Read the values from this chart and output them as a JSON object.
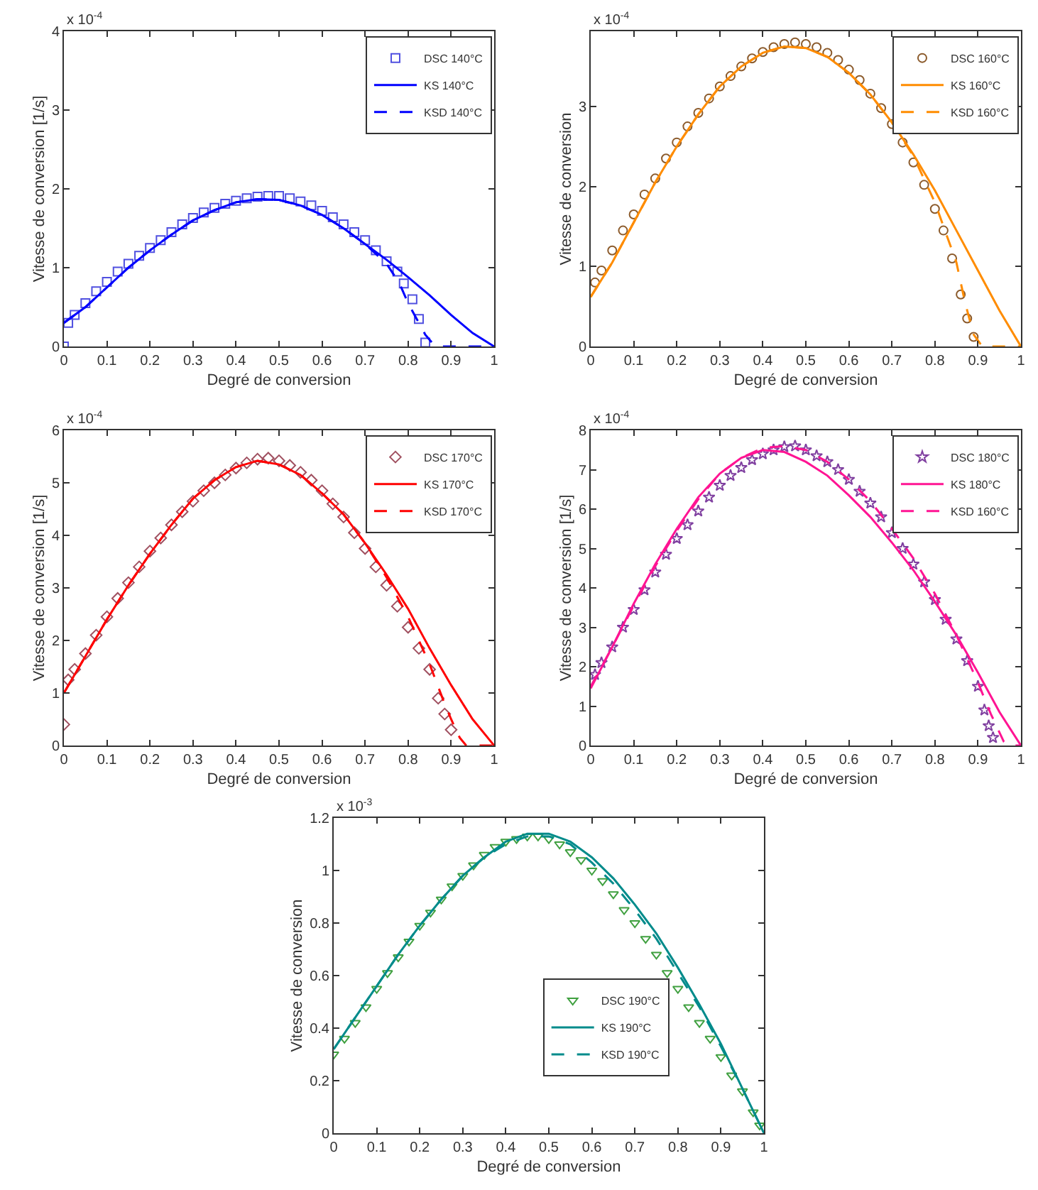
{
  "chart_data": [
    {
      "type": "line",
      "xlabel": "Degré de conversion",
      "ylabel": "Vitesse de conversion [1/s]",
      "annotations": [
        "x 10$^{-4}$"
      ],
      "xlim": [
        0,
        1
      ],
      "xticks": [
        0,
        0.1,
        0.2,
        0.3,
        0.4,
        0.5,
        0.6,
        0.7,
        0.8,
        0.9,
        1
      ],
      "ylim": [
        0,
        4
      ],
      "yticks": [
        0,
        1,
        2,
        3,
        4
      ],
      "legend": "top right",
      "series": [
        {
          "name": "DSC 140°C",
          "type": "scatter",
          "marker": "square",
          "color": "#5050e0",
          "x": [
            0,
            0.01,
            0.025,
            0.05,
            0.075,
            0.1,
            0.125,
            0.15,
            0.175,
            0.2,
            0.225,
            0.25,
            0.275,
            0.3,
            0.325,
            0.35,
            0.375,
            0.4,
            0.425,
            0.45,
            0.475,
            0.5,
            0.525,
            0.55,
            0.575,
            0.6,
            0.625,
            0.65,
            0.675,
            0.7,
            0.725,
            0.75,
            0.775,
            0.79,
            0.81,
            0.825,
            0.84
          ],
          "values": [
            0,
            0.3,
            0.4,
            0.55,
            0.7,
            0.82,
            0.95,
            1.05,
            1.15,
            1.25,
            1.35,
            1.45,
            1.55,
            1.63,
            1.7,
            1.76,
            1.81,
            1.85,
            1.88,
            1.9,
            1.91,
            1.91,
            1.88,
            1.84,
            1.79,
            1.72,
            1.64,
            1.55,
            1.45,
            1.35,
            1.22,
            1.08,
            0.95,
            0.8,
            0.6,
            0.35,
            0.05
          ]
        },
        {
          "name": "KS 140°C",
          "type": "line",
          "line_style": "solid",
          "color": "#0000ff",
          "x": [
            0,
            0.05,
            0.1,
            0.15,
            0.2,
            0.25,
            0.3,
            0.35,
            0.4,
            0.45,
            0.5,
            0.55,
            0.6,
            0.65,
            0.7,
            0.75,
            0.8,
            0.85,
            0.9,
            0.95,
            1
          ],
          "values": [
            0.3,
            0.5,
            0.75,
            1.0,
            1.22,
            1.42,
            1.6,
            1.73,
            1.83,
            1.87,
            1.86,
            1.79,
            1.67,
            1.5,
            1.3,
            1.1,
            0.88,
            0.65,
            0.4,
            0.17,
            0
          ]
        },
        {
          "name": "KSD 140°C",
          "type": "line",
          "line_style": "dashed",
          "color": "#0000ff",
          "x": [
            0,
            0.05,
            0.1,
            0.15,
            0.2,
            0.25,
            0.3,
            0.35,
            0.4,
            0.45,
            0.5,
            0.55,
            0.6,
            0.65,
            0.7,
            0.75,
            0.78,
            0.8,
            0.82,
            0.84,
            0.86,
            0.87,
            1
          ],
          "values": [
            0.3,
            0.5,
            0.75,
            1.0,
            1.22,
            1.42,
            1.6,
            1.73,
            1.83,
            1.87,
            1.86,
            1.79,
            1.67,
            1.5,
            1.3,
            1.05,
            0.8,
            0.55,
            0.35,
            0.15,
            0.02,
            0,
            0
          ]
        }
      ]
    },
    {
      "type": "line",
      "xlabel": "Degré de conversion",
      "ylabel": "Vitesse de conversion",
      "annotations": [
        "x 10$^{-4}$"
      ],
      "xlim": [
        0,
        1
      ],
      "xticks": [
        0,
        0.1,
        0.2,
        0.3,
        0.4,
        0.5,
        0.6,
        0.7,
        0.8,
        0.9,
        1
      ],
      "ylim": [
        0,
        3.94
      ],
      "yticks": [
        0,
        1,
        2,
        3
      ],
      "legend": "top right",
      "series": [
        {
          "name": "DSC 160°C",
          "type": "scatter",
          "marker": "circle",
          "color": "#8b5a2b",
          "x": [
            0.01,
            0.025,
            0.05,
            0.075,
            0.1,
            0.125,
            0.15,
            0.175,
            0.2,
            0.225,
            0.25,
            0.275,
            0.3,
            0.325,
            0.35,
            0.375,
            0.4,
            0.425,
            0.45,
            0.475,
            0.5,
            0.525,
            0.55,
            0.575,
            0.6,
            0.625,
            0.65,
            0.675,
            0.7,
            0.725,
            0.75,
            0.775,
            0.8,
            0.82,
            0.84,
            0.86,
            0.875,
            0.89
          ],
          "values": [
            0.8,
            0.95,
            1.2,
            1.45,
            1.65,
            1.9,
            2.1,
            2.35,
            2.55,
            2.75,
            2.92,
            3.1,
            3.25,
            3.38,
            3.5,
            3.6,
            3.68,
            3.74,
            3.78,
            3.8,
            3.78,
            3.74,
            3.67,
            3.58,
            3.46,
            3.33,
            3.16,
            2.98,
            2.78,
            2.55,
            2.3,
            2.02,
            1.72,
            1.45,
            1.1,
            0.65,
            0.35,
            0.12
          ]
        },
        {
          "name": "KS 160°C",
          "type": "line",
          "line_style": "solid",
          "color": "#ff8c00",
          "x": [
            0,
            0.05,
            0.1,
            0.15,
            0.2,
            0.25,
            0.3,
            0.35,
            0.4,
            0.45,
            0.5,
            0.55,
            0.6,
            0.65,
            0.7,
            0.75,
            0.8,
            0.85,
            0.9,
            0.95,
            1
          ],
          "values": [
            0.62,
            1.05,
            1.55,
            2.05,
            2.5,
            2.9,
            3.25,
            3.5,
            3.67,
            3.75,
            3.73,
            3.62,
            3.42,
            3.15,
            2.8,
            2.4,
            1.95,
            1.45,
            0.95,
            0.45,
            0
          ]
        },
        {
          "name": "KSD 160°C",
          "type": "line",
          "line_style": "dashed",
          "color": "#ff8c00",
          "x": [
            0,
            0.05,
            0.1,
            0.15,
            0.2,
            0.25,
            0.3,
            0.35,
            0.4,
            0.45,
            0.5,
            0.55,
            0.6,
            0.65,
            0.7,
            0.75,
            0.8,
            0.82,
            0.85,
            0.87,
            0.89,
            0.91,
            1
          ],
          "values": [
            0.62,
            1.05,
            1.55,
            2.05,
            2.5,
            2.9,
            3.25,
            3.5,
            3.67,
            3.75,
            3.73,
            3.62,
            3.42,
            3.15,
            2.8,
            2.38,
            1.8,
            1.5,
            1.05,
            0.55,
            0.15,
            0,
            0
          ]
        }
      ]
    },
    {
      "type": "line",
      "xlabel": "Degré de conversion",
      "ylabel": "Vitesse de conversion [1/s]",
      "annotations": [
        "x 10$^{-4}$"
      ],
      "xlim": [
        0,
        1
      ],
      "xticks": [
        0,
        0.1,
        0.2,
        0.3,
        0.4,
        0.5,
        0.6,
        0.7,
        0.8,
        0.9,
        1
      ],
      "ylim": [
        0,
        6
      ],
      "yticks": [
        0,
        1,
        2,
        3,
        4,
        5,
        6
      ],
      "legend": "top right",
      "series": [
        {
          "name": "DSC 170°C",
          "type": "scatter",
          "marker": "diamond",
          "color": "#a05060",
          "x": [
            0,
            0.01,
            0.025,
            0.05,
            0.075,
            0.1,
            0.125,
            0.15,
            0.175,
            0.2,
            0.225,
            0.25,
            0.275,
            0.3,
            0.325,
            0.35,
            0.375,
            0.4,
            0.425,
            0.45,
            0.475,
            0.5,
            0.525,
            0.55,
            0.575,
            0.6,
            0.625,
            0.65,
            0.675,
            0.7,
            0.725,
            0.75,
            0.775,
            0.8,
            0.825,
            0.85,
            0.87,
            0.885,
            0.9
          ],
          "values": [
            0.4,
            1.25,
            1.45,
            1.75,
            2.1,
            2.45,
            2.8,
            3.1,
            3.4,
            3.7,
            3.95,
            4.2,
            4.45,
            4.65,
            4.85,
            5.0,
            5.15,
            5.28,
            5.38,
            5.45,
            5.47,
            5.42,
            5.33,
            5.2,
            5.05,
            4.85,
            4.6,
            4.35,
            4.05,
            3.75,
            3.4,
            3.05,
            2.65,
            2.25,
            1.85,
            1.45,
            0.9,
            0.6,
            0.3
          ]
        },
        {
          "name": "KS 170°C",
          "type": "line",
          "line_style": "solid",
          "color": "#ff0000",
          "x": [
            0,
            0.05,
            0.1,
            0.15,
            0.2,
            0.25,
            0.3,
            0.35,
            0.4,
            0.45,
            0.5,
            0.55,
            0.6,
            0.65,
            0.7,
            0.75,
            0.8,
            0.85,
            0.9,
            0.95,
            1
          ],
          "values": [
            1.0,
            1.7,
            2.4,
            3.05,
            3.65,
            4.2,
            4.7,
            5.05,
            5.3,
            5.42,
            5.35,
            5.15,
            4.8,
            4.4,
            3.85,
            3.25,
            2.6,
            1.85,
            1.15,
            0.5,
            0
          ]
        },
        {
          "name": "KSD 170°C",
          "type": "line",
          "line_style": "dashed",
          "color": "#ff0000",
          "x": [
            0,
            0.05,
            0.1,
            0.15,
            0.2,
            0.25,
            0.3,
            0.35,
            0.4,
            0.45,
            0.5,
            0.55,
            0.6,
            0.65,
            0.7,
            0.75,
            0.8,
            0.85,
            0.88,
            0.9,
            0.92,
            0.935,
            1
          ],
          "values": [
            1.0,
            1.7,
            2.4,
            3.05,
            3.65,
            4.2,
            4.7,
            5.05,
            5.3,
            5.42,
            5.35,
            5.15,
            4.8,
            4.4,
            3.85,
            3.2,
            2.45,
            1.55,
            0.9,
            0.5,
            0.15,
            0,
            0
          ]
        }
      ]
    },
    {
      "type": "line",
      "xlabel": "Degré de conversion",
      "ylabel": "Vitesse de conversion [1/s]",
      "annotations": [
        "x 10$^{-4}$"
      ],
      "xlim": [
        0,
        1
      ],
      "xticks": [
        0,
        0.1,
        0.2,
        0.3,
        0.4,
        0.5,
        0.6,
        0.7,
        0.8,
        0.9,
        1
      ],
      "ylim": [
        0,
        8
      ],
      "yticks": [
        0,
        1,
        2,
        3,
        4,
        5,
        6,
        7,
        8
      ],
      "legend": "top right",
      "series": [
        {
          "name": "DSC 180°C",
          "type": "scatter",
          "marker": "star",
          "color": "#8040a0",
          "x": [
            0.01,
            0.025,
            0.05,
            0.075,
            0.1,
            0.125,
            0.15,
            0.175,
            0.2,
            0.225,
            0.25,
            0.275,
            0.3,
            0.325,
            0.35,
            0.375,
            0.4,
            0.425,
            0.45,
            0.475,
            0.5,
            0.525,
            0.55,
            0.575,
            0.6,
            0.625,
            0.65,
            0.675,
            0.7,
            0.725,
            0.75,
            0.775,
            0.8,
            0.825,
            0.85,
            0.875,
            0.9,
            0.915,
            0.925,
            0.935
          ],
          "values": [
            1.8,
            2.1,
            2.5,
            3.0,
            3.45,
            3.95,
            4.4,
            4.85,
            5.25,
            5.6,
            5.95,
            6.3,
            6.6,
            6.85,
            7.05,
            7.25,
            7.4,
            7.5,
            7.58,
            7.6,
            7.5,
            7.35,
            7.2,
            7.0,
            6.75,
            6.45,
            6.15,
            5.8,
            5.4,
            5.0,
            4.6,
            4.15,
            3.7,
            3.2,
            2.7,
            2.15,
            1.5,
            0.9,
            0.5,
            0.2
          ]
        },
        {
          "name": "KS 180°C",
          "type": "line",
          "line_style": "solid",
          "color": "#ff1493",
          "x": [
            0,
            0.05,
            0.1,
            0.15,
            0.2,
            0.25,
            0.3,
            0.35,
            0.4,
            0.45,
            0.5,
            0.55,
            0.6,
            0.65,
            0.7,
            0.75,
            0.8,
            0.85,
            0.9,
            0.95,
            1
          ],
          "values": [
            1.45,
            2.5,
            3.6,
            4.6,
            5.5,
            6.3,
            6.9,
            7.3,
            7.5,
            7.45,
            7.2,
            6.85,
            6.35,
            5.8,
            5.15,
            4.45,
            3.65,
            2.8,
            1.85,
            0.85,
            0
          ]
        },
        {
          "name": "KSD 160°C",
          "type": "line",
          "line_style": "dashed",
          "color": "#ff1493",
          "x": [
            0,
            0.05,
            0.1,
            0.15,
            0.2,
            0.25,
            0.3,
            0.35,
            0.4,
            0.45,
            0.5,
            0.55,
            0.6,
            0.65,
            0.7,
            0.75,
            0.8,
            0.85,
            0.9,
            0.93,
            0.96,
            0.97,
            1
          ],
          "values": [
            1.5,
            2.5,
            3.55,
            4.55,
            5.45,
            6.25,
            6.9,
            7.3,
            7.55,
            7.6,
            7.5,
            7.2,
            6.75,
            6.2,
            5.5,
            4.75,
            3.85,
            2.8,
            1.6,
            0.8,
            0.1,
            0,
            0
          ]
        }
      ]
    },
    {
      "type": "line",
      "xlabel": "Degré de conversion",
      "ylabel": "Vitesse de conversion",
      "annotations": [
        "x 10$^{-3}$"
      ],
      "xlim": [
        0,
        1
      ],
      "xticks": [
        0,
        0.1,
        0.2,
        0.3,
        0.4,
        0.5,
        0.6,
        0.7,
        0.8,
        0.9,
        1
      ],
      "ylim": [
        0,
        1.2
      ],
      "yticks": [
        0,
        0.2,
        0.4,
        0.6,
        0.8,
        1,
        1.2
      ],
      "legend": "bottom",
      "series": [
        {
          "name": "DSC 190°C",
          "type": "scatter",
          "marker": "triangle",
          "color": "#40a040",
          "x": [
            0,
            0.025,
            0.05,
            0.075,
            0.1,
            0.125,
            0.15,
            0.175,
            0.2,
            0.225,
            0.25,
            0.275,
            0.3,
            0.325,
            0.35,
            0.375,
            0.4,
            0.425,
            0.45,
            0.475,
            0.5,
            0.525,
            0.55,
            0.575,
            0.6,
            0.625,
            0.65,
            0.675,
            0.7,
            0.725,
            0.75,
            0.775,
            0.8,
            0.825,
            0.85,
            0.875,
            0.9,
            0.925,
            0.95,
            0.975,
            0.99
          ],
          "values": [
            0.3,
            0.36,
            0.42,
            0.48,
            0.55,
            0.61,
            0.67,
            0.73,
            0.79,
            0.84,
            0.89,
            0.94,
            0.98,
            1.02,
            1.06,
            1.09,
            1.11,
            1.12,
            1.13,
            1.13,
            1.12,
            1.1,
            1.07,
            1.04,
            1.0,
            0.96,
            0.91,
            0.85,
            0.8,
            0.74,
            0.68,
            0.61,
            0.55,
            0.48,
            0.42,
            0.36,
            0.29,
            0.22,
            0.16,
            0.08,
            0.03
          ]
        },
        {
          "name": "KS 190°C",
          "type": "line",
          "line_style": "solid",
          "color": "#008b8b",
          "x": [
            0,
            0.05,
            0.1,
            0.15,
            0.2,
            0.25,
            0.3,
            0.35,
            0.4,
            0.45,
            0.5,
            0.55,
            0.6,
            0.65,
            0.7,
            0.75,
            0.8,
            0.85,
            0.9,
            0.95,
            1
          ],
          "values": [
            0.32,
            0.44,
            0.56,
            0.68,
            0.79,
            0.89,
            0.98,
            1.05,
            1.11,
            1.14,
            1.14,
            1.11,
            1.05,
            0.97,
            0.87,
            0.76,
            0.63,
            0.49,
            0.34,
            0.17,
            0
          ]
        },
        {
          "name": "KSD 190°C",
          "type": "line",
          "line_style": "dashed",
          "color": "#008b8b",
          "x": [
            0,
            0.05,
            0.1,
            0.15,
            0.2,
            0.25,
            0.3,
            0.35,
            0.4,
            0.45,
            0.5,
            0.55,
            0.6,
            0.65,
            0.7,
            0.75,
            0.8,
            0.85,
            0.9,
            0.95,
            1
          ],
          "values": [
            0.32,
            0.44,
            0.56,
            0.68,
            0.79,
            0.89,
            0.98,
            1.05,
            1.1,
            1.13,
            1.13,
            1.1,
            1.03,
            0.95,
            0.85,
            0.74,
            0.61,
            0.48,
            0.33,
            0.17,
            0
          ]
        }
      ]
    }
  ]
}
